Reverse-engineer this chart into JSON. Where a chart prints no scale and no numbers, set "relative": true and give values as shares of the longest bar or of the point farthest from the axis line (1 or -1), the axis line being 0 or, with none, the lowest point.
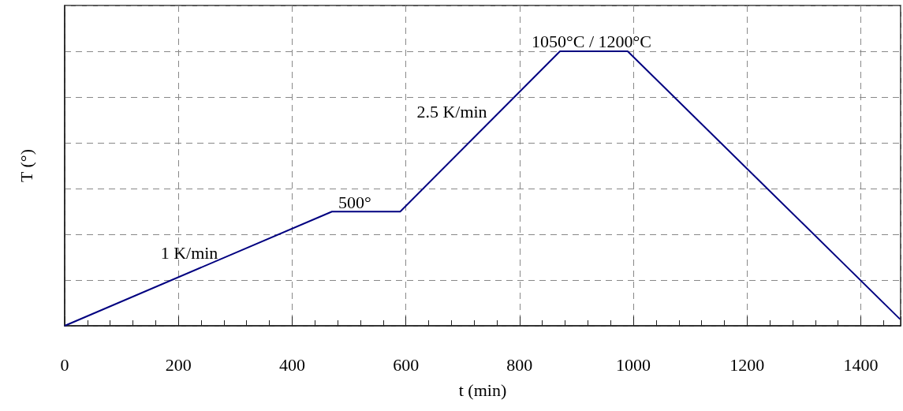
{
  "chart_data": {
    "type": "line",
    "relative": true,
    "xlabel": "t (min)",
    "ylabel": "T (°)",
    "x": [
      0,
      470,
      590,
      871,
      990,
      1469
    ],
    "series": [
      {
        "color": "#000080",
        "values": [
          0,
          0.416,
          0.416,
          1,
          1,
          0.024
        ]
      }
    ],
    "xlim": [
      0,
      1470
    ],
    "xticks": [
      0,
      200,
      400,
      600,
      800,
      1000,
      1200,
      1400
    ],
    "grid": true,
    "marker": "none",
    "line_style": "solid",
    "annotations": [
      "1 K/min",
      "500°",
      "2.5 K/min",
      "1050°C / 1200°C"
    ]
  }
}
